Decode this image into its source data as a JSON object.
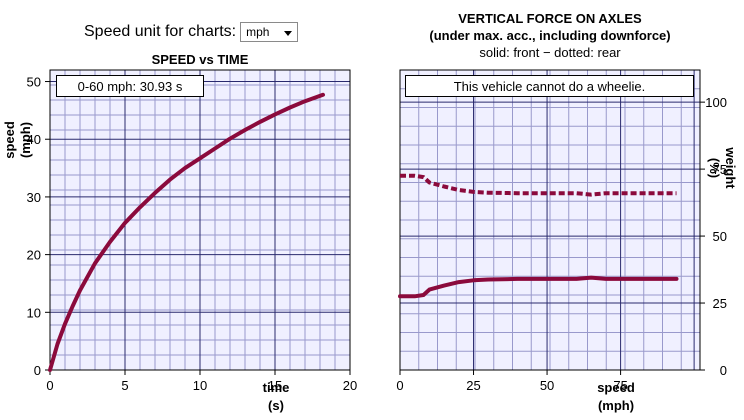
{
  "unit_selector": {
    "label": "Speed unit for charts:",
    "selected": "mph"
  },
  "speed_chart": {
    "title": "SPEED vs TIME",
    "annotation": "0-60 mph: 30.93 s",
    "xlabel_line1": "time",
    "xlabel_line2": "(s)",
    "ylabel_line1": "speed",
    "ylabel_line2": "(mph)"
  },
  "force_chart": {
    "title_line1": "VERTICAL FORCE ON AXLES",
    "title_line2": "(under max. acc., including downforce)",
    "subtitle": "solid: front − dotted: rear",
    "annotation": "This vehicle cannot do a wheelie.",
    "xlabel_line1": "speed",
    "xlabel_line2": "(mph)",
    "ylabel_line1": "weight",
    "ylabel_line2": "(%)"
  },
  "colors": {
    "line": "#8b0a3c",
    "grid_minor": "#9999cc",
    "grid_major": "#2a2a6e",
    "plot_bg": "#f0f0ff"
  },
  "chart_data": [
    {
      "type": "line",
      "title": "SPEED vs TIME",
      "xlabel": "time (s)",
      "ylabel": "speed (mph)",
      "xlim": [
        0,
        20
      ],
      "ylim": [
        0,
        52
      ],
      "x_ticks": [
        0,
        5,
        10,
        15,
        20
      ],
      "y_ticks": [
        0,
        10,
        20,
        30,
        40,
        50
      ],
      "grid": true,
      "series": [
        {
          "x": [
            0,
            0.5,
            1,
            1.5,
            2,
            3,
            4,
            5,
            6,
            7,
            8,
            9,
            10,
            11,
            12,
            13,
            14,
            15,
            16,
            17,
            18.2
          ],
          "values": [
            0,
            4.5,
            8,
            11,
            13.8,
            18.5,
            22.2,
            25.5,
            28.2,
            30.7,
            33,
            35,
            36.7,
            38.4,
            40.1,
            41.6,
            43,
            44.3,
            45.5,
            46.6,
            47.7
          ]
        }
      ]
    },
    {
      "type": "line",
      "title": "VERTICAL FORCE ON AXLES",
      "xlabel": "speed (mph)",
      "ylabel": "weight (%)",
      "xlim": [
        0,
        102
      ],
      "ylim": [
        0,
        112
      ],
      "x_ticks": [
        0,
        25,
        50,
        75
      ],
      "y_ticks": [
        0,
        25,
        50,
        75,
        100
      ],
      "grid": true,
      "series": [
        {
          "name": "front",
          "style": "solid",
          "x": [
            0,
            5,
            8,
            10,
            15,
            20,
            25,
            30,
            40,
            50,
            60,
            65,
            70,
            80,
            94
          ],
          "values": [
            27.5,
            27.5,
            28,
            30,
            31.5,
            32.8,
            33.5,
            33.8,
            34,
            34,
            34,
            34.5,
            34,
            34,
            34
          ]
        },
        {
          "name": "rear",
          "style": "dotted",
          "x": [
            0,
            5,
            8,
            10,
            15,
            20,
            25,
            30,
            40,
            50,
            60,
            65,
            70,
            80,
            94
          ],
          "values": [
            72.5,
            72.5,
            72,
            70,
            68.5,
            67.2,
            66.5,
            66.2,
            66,
            66,
            66,
            65.5,
            66,
            66,
            66
          ]
        }
      ]
    }
  ]
}
